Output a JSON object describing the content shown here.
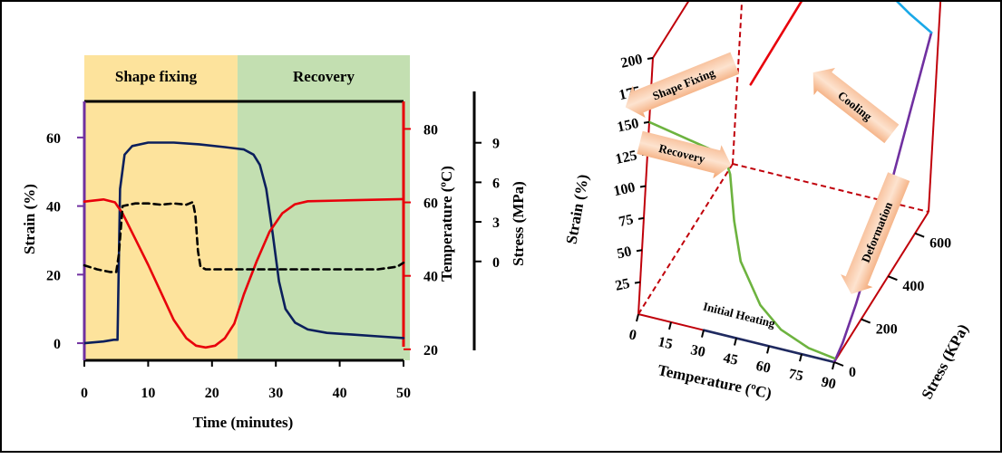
{
  "chart_data": [
    {
      "type": "line",
      "xlabel": "Time (minutes)",
      "xlim": [
        0,
        50
      ],
      "x_ticks": [
        "0",
        "10",
        "20",
        "30",
        "40",
        "50"
      ],
      "bands": [
        {
          "label": "Shape fixing",
          "x_from": 0,
          "x_to": 24,
          "color": "#fde39c"
        },
        {
          "label": "Recovery",
          "x_from": 24,
          "x_to": 51,
          "color": "#c3dfb1"
        }
      ],
      "axes": {
        "strain": {
          "label": "Strain (%)",
          "lim": [
            -5,
            70
          ],
          "ticks": [
            "0",
            "20",
            "40",
            "60"
          ],
          "color": "#7030a0"
        },
        "temperature": {
          "label": "Temperature (ºC)",
          "lim": [
            17,
            87
          ],
          "ticks": [
            "20",
            "40",
            "60",
            "80"
          ],
          "color": "#e8000b"
        },
        "stress": {
          "label": "Stress (MPa)",
          "lim": [
            -7.5,
            12
          ],
          "ticks": [
            "0",
            "3",
            "6",
            "9"
          ],
          "color": "#000000"
        }
      },
      "series": [
        {
          "axis": "strain",
          "color": "#0b1f5c",
          "style": "solid",
          "x": [
            0,
            3,
            4.6,
            5.2,
            5.6,
            6.3,
            7.5,
            10,
            14,
            18,
            22,
            25,
            26.5,
            27.5,
            28.5,
            29.5,
            30.5,
            31.5,
            33,
            35,
            38,
            42,
            46,
            50
          ],
          "y": [
            0,
            0.5,
            1,
            1,
            45,
            55,
            57.5,
            58.5,
            58.5,
            58,
            57.2,
            56.5,
            55,
            52,
            45,
            32,
            18,
            10,
            6,
            4,
            3,
            2.5,
            2,
            1.5
          ]
        },
        {
          "axis": "temperature",
          "color": "#e8000b",
          "style": "solid",
          "x": [
            0,
            3,
            4.8,
            6,
            8,
            10,
            12,
            14,
            16,
            17.5,
            19,
            20.5,
            22,
            23.5,
            25,
            27,
            29,
            31,
            33,
            35,
            40,
            45,
            50
          ],
          "y": [
            60.2,
            60.8,
            60,
            57,
            50,
            43,
            35.5,
            28,
            23,
            21,
            20.5,
            21,
            23,
            27,
            35,
            44,
            52,
            57,
            59.5,
            60.3,
            60.5,
            60.7,
            60.9
          ]
        },
        {
          "axis": "stress",
          "color": "#000000",
          "style": "dashed",
          "x": [
            0,
            2,
            4,
            5,
            5.4,
            6,
            8,
            10,
            12,
            14,
            16,
            17,
            17.4,
            17.8,
            18.2,
            19,
            24,
            30,
            40,
            46,
            49,
            50
          ],
          "y": [
            -0.3,
            -0.6,
            -0.8,
            -0.8,
            0.5,
            4.2,
            4.4,
            4.4,
            4.3,
            4.4,
            4.3,
            4.5,
            3.5,
            0.8,
            -0.4,
            -0.6,
            -0.6,
            -0.6,
            -0.6,
            -0.6,
            -0.4,
            -0.1
          ]
        }
      ]
    },
    {
      "type": "line",
      "projection": "3d",
      "xlabel": "Temperature (ºC)",
      "ylabel": "Strain (%)",
      "zlabel": "Stress (KPa)",
      "x_ticks": [
        "0",
        "15",
        "30",
        "45",
        "60",
        "75",
        "90"
      ],
      "y_ticks": [
        "25",
        "50",
        "75",
        "100",
        "125",
        "150",
        "175",
        "200"
      ],
      "z_ticks": [
        "0",
        "200",
        "400",
        "600"
      ],
      "xlim": [
        0,
        90
      ],
      "ylim": [
        0,
        200
      ],
      "zlim": [
        0,
        700
      ],
      "annotations": {
        "shape_fixing": "Shape Fixing",
        "recovery": "Recovery",
        "cooling": "Cooling",
        "deformation": "Deformation",
        "initial_heating": "Initial Heating"
      },
      "segments": [
        {
          "name": "Initial Heating",
          "color": "#1f2a60",
          "points": [
            [
              30,
              0,
              0
            ],
            [
              90,
              0,
              0
            ]
          ]
        },
        {
          "name": "Deformation",
          "color": "#7030a0",
          "points": [
            [
              90,
              0,
              0
            ],
            [
              90,
              5,
              60
            ],
            [
              90,
              20,
              150
            ],
            [
              90,
              45,
              260
            ],
            [
              90,
              75,
              380
            ],
            [
              90,
              110,
              500
            ],
            [
              90,
              150,
              640
            ]
          ]
        },
        {
          "name": "Cooling",
          "color": "#1aa9e8",
          "points": [
            [
              90,
              150,
              640
            ],
            [
              80,
              160,
              640
            ],
            [
              70,
              172,
              640
            ],
            [
              60,
              186,
              640
            ],
            [
              52,
              197,
              640
            ],
            [
              45,
              202,
              640
            ]
          ]
        },
        {
          "name": "Shape Fixing",
          "color": "#e8000b",
          "points": [
            [
              45,
              202,
              640
            ],
            [
              45,
              200,
              380
            ],
            [
              45,
              198,
              0
            ]
          ]
        },
        {
          "name": "Recovery",
          "color": "#6db33f",
          "points": [
            [
              0,
              150,
              0
            ],
            [
              15,
              145,
              0
            ],
            [
              30,
              140,
              0
            ],
            [
              35,
              138,
              0
            ],
            [
              38,
              125,
              0
            ],
            [
              41,
              90,
              0
            ],
            [
              45,
              60,
              0
            ],
            [
              55,
              30,
              0
            ],
            [
              65,
              15,
              0
            ],
            [
              78,
              6,
              0
            ],
            [
              90,
              3,
              0
            ]
          ]
        }
      ]
    }
  ]
}
